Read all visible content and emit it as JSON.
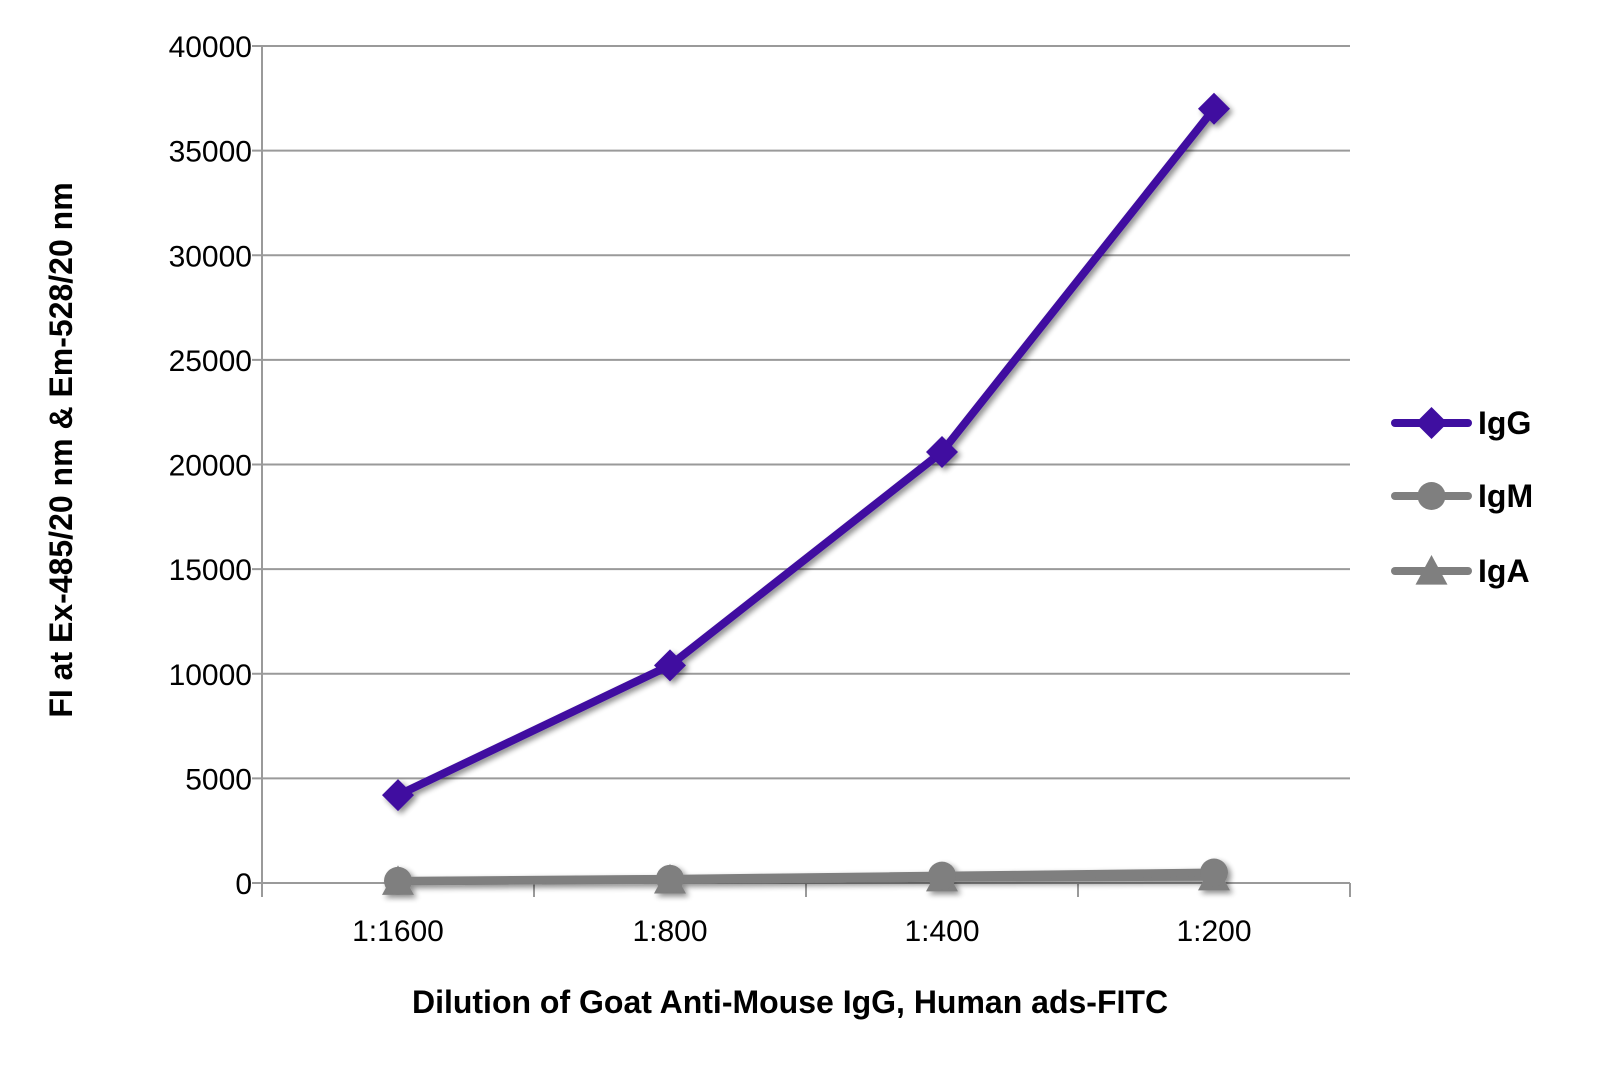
{
  "chart_data": {
    "type": "line",
    "categories": [
      "1:1600",
      "1:800",
      "1:400",
      "1:200"
    ],
    "series": [
      {
        "name": "IgG",
        "values": [
          4200,
          10400,
          20600,
          37000
        ],
        "color": "#3f0fa0",
        "marker": "diamond"
      },
      {
        "name": "IgM",
        "values": [
          100,
          200,
          350,
          500
        ],
        "color": "#7f7f7f",
        "marker": "circle"
      },
      {
        "name": "IgA",
        "values": [
          80,
          150,
          250,
          300
        ],
        "color": "#7f7f7f",
        "marker": "triangle"
      }
    ],
    "xlabel": "Dilution of Goat Anti-Mouse IgG, Human ads-FITC",
    "ylabel": "FI at Ex-485/20 nm & Em-528/20 nm",
    "ylim": [
      0,
      40000
    ],
    "yticks": [
      0,
      5000,
      10000,
      15000,
      20000,
      25000,
      30000,
      35000,
      40000
    ],
    "grid": true,
    "legend": "right"
  }
}
